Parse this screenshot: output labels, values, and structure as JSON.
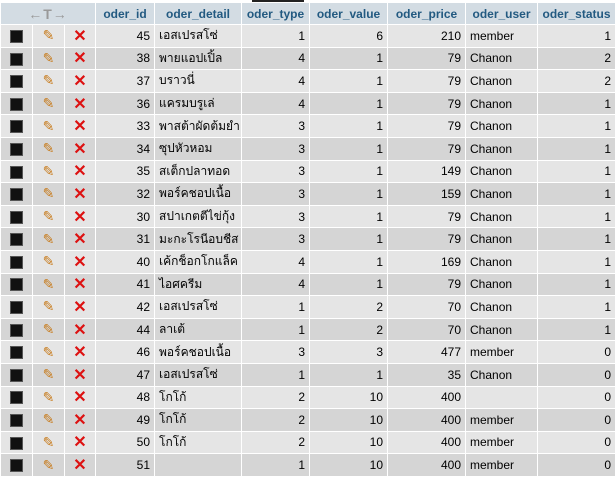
{
  "header": {
    "nav_arrows": "←T→",
    "columns": [
      "oder_id",
      "oder_detail",
      "oder_type",
      "oder_value",
      "oder_price",
      "oder_user",
      "oder_status"
    ]
  },
  "icons": {
    "select": "checkbox-icon",
    "edit": "pencil-icon",
    "delete": "x-delete-icon"
  },
  "rows": [
    [
      "45",
      "เอสเปรสโซ่",
      "1",
      "6",
      "210",
      "member",
      "1"
    ],
    [
      "38",
      "พายแอปเปิ้ล",
      "4",
      "1",
      "79",
      "Chanon",
      "2"
    ],
    [
      "37",
      "บราวนี่",
      "4",
      "1",
      "79",
      "Chanon",
      "2"
    ],
    [
      "36",
      "แครมบรูเล่",
      "4",
      "1",
      "79",
      "Chanon",
      "1"
    ],
    [
      "33",
      "พาสต้าผัดต้มยำ",
      "3",
      "1",
      "79",
      "Chanon",
      "1"
    ],
    [
      "34",
      "ซุปหัวหอม",
      "3",
      "1",
      "79",
      "Chanon",
      "1"
    ],
    [
      "35",
      "สเต็กปลาทอด",
      "3",
      "1",
      "149",
      "Chanon",
      "1"
    ],
    [
      "32",
      "พอร์คชอปเนื้อ",
      "3",
      "1",
      "159",
      "Chanon",
      "1"
    ],
    [
      "30",
      "สปาเกตตีไข่กุ้ง",
      "3",
      "1",
      "79",
      "Chanon",
      "1"
    ],
    [
      "31",
      "มะกะโรนีอบชีส",
      "3",
      "1",
      "79",
      "Chanon",
      "1"
    ],
    [
      "40",
      "เค้กช็อกโกแล็ค",
      "4",
      "1",
      "169",
      "Chanon",
      "1"
    ],
    [
      "41",
      "ไอศครีม",
      "4",
      "1",
      "79",
      "Chanon",
      "1"
    ],
    [
      "42",
      "เอสเปรสโซ่",
      "1",
      "2",
      "70",
      "Chanon",
      "1"
    ],
    [
      "44",
      "ลาเต้",
      "1",
      "2",
      "70",
      "Chanon",
      "1"
    ],
    [
      "46",
      "พอร์คชอปเนื้อ",
      "3",
      "3",
      "477",
      "member",
      "0"
    ],
    [
      "47",
      "เอสเปรสโซ่",
      "1",
      "1",
      "35",
      "Chanon",
      "0"
    ],
    [
      "48",
      "โกโก้",
      "2",
      "10",
      "400",
      "",
      "0"
    ],
    [
      "49",
      "โกโก้",
      "2",
      "10",
      "400",
      "member",
      "0"
    ],
    [
      "50",
      "โกโก้",
      "2",
      "10",
      "400",
      "member",
      "0"
    ],
    [
      "51",
      "",
      "1",
      "10",
      "400",
      "member",
      "0"
    ]
  ]
}
